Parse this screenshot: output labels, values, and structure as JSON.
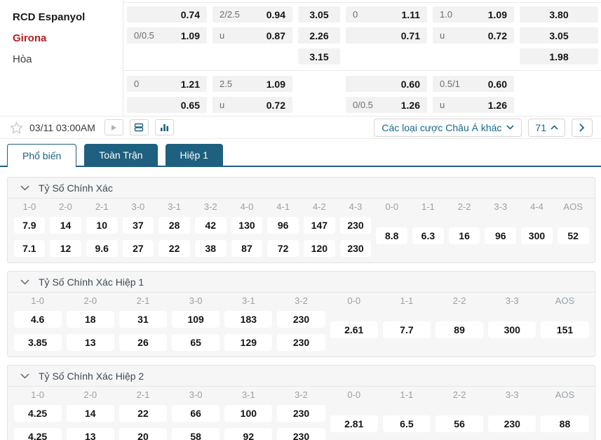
{
  "accent": {
    "teal": "#1e607f",
    "control_teal": "#17678f",
    "red": "#b32025"
  },
  "match": {
    "home": "RCD Espanyol",
    "away": "Girona",
    "draw_label": "Hòa"
  },
  "top_odds": {
    "rows": [
      [
        {
          "h": "",
          "o": "0.74"
        },
        {
          "h": "2/2.5",
          "o": "0.94"
        },
        {
          "o": "3.05"
        },
        {
          "h": "0",
          "o": "1.11"
        },
        {
          "h": "1.0",
          "o": "1.09"
        },
        {
          "o": "3.80"
        }
      ],
      [
        {
          "h": "0/0.5",
          "o": "1.09"
        },
        {
          "h": "u",
          "o": "0.87"
        },
        {
          "o": "2.26"
        },
        {
          "h": "",
          "o": "0.71"
        },
        {
          "h": "u",
          "o": "0.72"
        },
        {
          "o": "3.05"
        }
      ],
      [
        null,
        null,
        {
          "o": "3.15"
        },
        null,
        null,
        {
          "o": "1.98"
        }
      ],
      [
        {
          "h": "0",
          "o": "1.21"
        },
        {
          "h": "2.5",
          "o": "1.09"
        },
        null,
        {
          "h": "",
          "o": "0.60"
        },
        {
          "h": "0.5/1",
          "o": "0.60"
        },
        null
      ],
      [
        {
          "h": "",
          "o": "0.65"
        },
        {
          "h": "u",
          "o": "0.72"
        },
        null,
        {
          "h": "0/0.5",
          "o": "1.26"
        },
        {
          "h": "u",
          "o": "1.26"
        },
        null
      ]
    ]
  },
  "toolbar": {
    "date": "03/11 03:00AM",
    "dropdown_label": "Các loại cược Châu Á khác",
    "count": "71"
  },
  "tabs": [
    {
      "label": "Phổ biến",
      "active": true
    },
    {
      "label": "Toàn Trận",
      "active": false
    },
    {
      "label": "Hiệp 1",
      "active": false
    }
  ],
  "panels": [
    {
      "title": "Tỷ Số Chính Xác",
      "columns": [
        {
          "score": "1-0",
          "home": "7.9",
          "away": "7.1"
        },
        {
          "score": "2-0",
          "home": "14",
          "away": "12"
        },
        {
          "score": "2-1",
          "home": "10",
          "away": "9.6"
        },
        {
          "score": "3-0",
          "home": "37",
          "away": "27"
        },
        {
          "score": "3-1",
          "home": "28",
          "away": "22"
        },
        {
          "score": "3-2",
          "home": "42",
          "away": "38"
        },
        {
          "score": "4-0",
          "home": "130",
          "away": "87"
        },
        {
          "score": "4-1",
          "home": "96",
          "away": "72"
        },
        {
          "score": "4-2",
          "home": "147",
          "away": "120"
        },
        {
          "score": "4-3",
          "home": "230",
          "away": "230"
        },
        {
          "score": "0-0",
          "draw": "8.8"
        },
        {
          "score": "1-1",
          "draw": "6.3"
        },
        {
          "score": "2-2",
          "draw": "16"
        },
        {
          "score": "3-3",
          "draw": "96"
        },
        {
          "score": "4-4",
          "draw": "300"
        },
        {
          "score": "AOS",
          "draw": "52"
        }
      ]
    },
    {
      "title": "Tỷ Số Chính Xác Hiệp 1",
      "columns": [
        {
          "score": "1-0",
          "home": "4.6",
          "away": "3.85"
        },
        {
          "score": "2-0",
          "home": "18",
          "away": "13"
        },
        {
          "score": "2-1",
          "home": "31",
          "away": "26"
        },
        {
          "score": "3-0",
          "home": "109",
          "away": "65"
        },
        {
          "score": "3-1",
          "home": "183",
          "away": "129"
        },
        {
          "score": "3-2",
          "home": "230",
          "away": "230"
        },
        {
          "score": "0-0",
          "draw": "2.61"
        },
        {
          "score": "1-1",
          "draw": "7.7"
        },
        {
          "score": "2-2",
          "draw": "89"
        },
        {
          "score": "3-3",
          "draw": "300"
        },
        {
          "score": "AOS",
          "draw": "151"
        }
      ]
    },
    {
      "title": "Tỷ Số Chính Xác Hiệp 2",
      "columns": [
        {
          "score": "1-0",
          "home": "4.25",
          "away": "4.25"
        },
        {
          "score": "2-0",
          "home": "14",
          "away": "13"
        },
        {
          "score": "2-1",
          "home": "22",
          "away": "20"
        },
        {
          "score": "3-0",
          "home": "66",
          "away": "58"
        },
        {
          "score": "3-1",
          "home": "100",
          "away": "92"
        },
        {
          "score": "3-2",
          "home": "230",
          "away": "230"
        },
        {
          "score": "0-0",
          "draw": "2.81"
        },
        {
          "score": "1-1",
          "draw": "6.5"
        },
        {
          "score": "2-2",
          "draw": "56"
        },
        {
          "score": "3-3",
          "draw": "230"
        },
        {
          "score": "AOS",
          "draw": "88"
        }
      ]
    }
  ]
}
